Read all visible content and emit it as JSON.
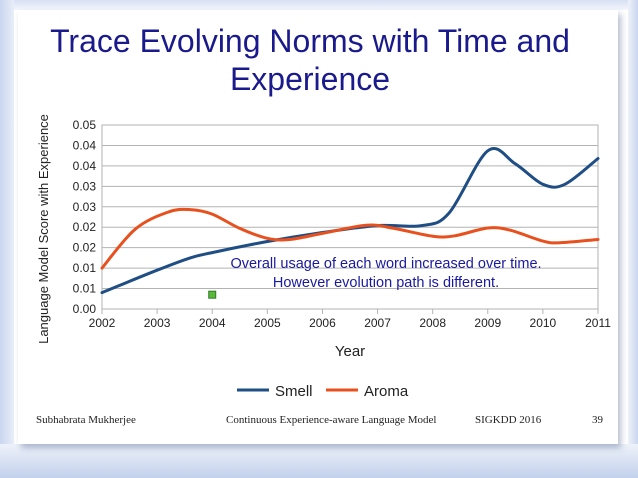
{
  "slide": {
    "title": "Trace Evolving Norms with Time and Experience",
    "footer": {
      "author": "Subhabrata Mukherjee",
      "talk": "Continuous Experience-aware Language Model",
      "venue": "SIGKDD 2016",
      "page": "39"
    }
  },
  "chart_data": {
    "type": "line",
    "xlabel": "Year",
    "ylabel": "Language Model Score with Experience",
    "x": [
      2002,
      2003,
      2004,
      2005,
      2006,
      2007,
      2008,
      2009,
      2010,
      2011
    ],
    "x_tick_labels": [
      "2002",
      "2003",
      "2004",
      "2005",
      "2006",
      "2007",
      "2008",
      "2009",
      "2010",
      "2011"
    ],
    "y_tick_labels": [
      "0.00",
      "0.01",
      "0.01",
      "0.02",
      "0.02",
      "0.03",
      "0.03",
      "0.04",
      "0.04",
      "0.05"
    ],
    "ylim": [
      0,
      0.045
    ],
    "grid": "horizontal",
    "legend_position": "bottom",
    "series": [
      {
        "name": "Smell",
        "color": "#1f4e84",
        "points": [
          [
            2002,
            0.004
          ],
          [
            2003,
            0.0095
          ],
          [
            2003.6,
            0.0125
          ],
          [
            2004,
            0.0138
          ],
          [
            2005,
            0.0165
          ],
          [
            2006,
            0.0187
          ],
          [
            2007,
            0.0204
          ],
          [
            2007.8,
            0.0204
          ],
          [
            2008.3,
            0.0235
          ],
          [
            2009,
            0.0387
          ],
          [
            2009.5,
            0.0355
          ],
          [
            2010,
            0.0305
          ],
          [
            2010.4,
            0.0305
          ],
          [
            2011,
            0.0368
          ]
        ]
      },
      {
        "name": "Aroma",
        "color": "#e8501e",
        "points": [
          [
            2002,
            0.01
          ],
          [
            2002.6,
            0.0195
          ],
          [
            2003.2,
            0.0237
          ],
          [
            2003.6,
            0.0243
          ],
          [
            2004,
            0.0232
          ],
          [
            2004.5,
            0.0197
          ],
          [
            2005,
            0.0173
          ],
          [
            2005.4,
            0.017
          ],
          [
            2006,
            0.0185
          ],
          [
            2006.8,
            0.0205
          ],
          [
            2007.3,
            0.0197
          ],
          [
            2008,
            0.0178
          ],
          [
            2008.4,
            0.0179
          ],
          [
            2009,
            0.0198
          ],
          [
            2009.4,
            0.0193
          ],
          [
            2010,
            0.0166
          ],
          [
            2010.3,
            0.0162
          ],
          [
            2011,
            0.017
          ]
        ]
      }
    ],
    "annotation": {
      "line1": "Overall usage of each word increased over time.",
      "line2": "However evolution path is different.",
      "color": "#1a1aa0"
    },
    "marker": {
      "x": 2004,
      "y": 0.0035,
      "color": "#5ab73c"
    }
  }
}
